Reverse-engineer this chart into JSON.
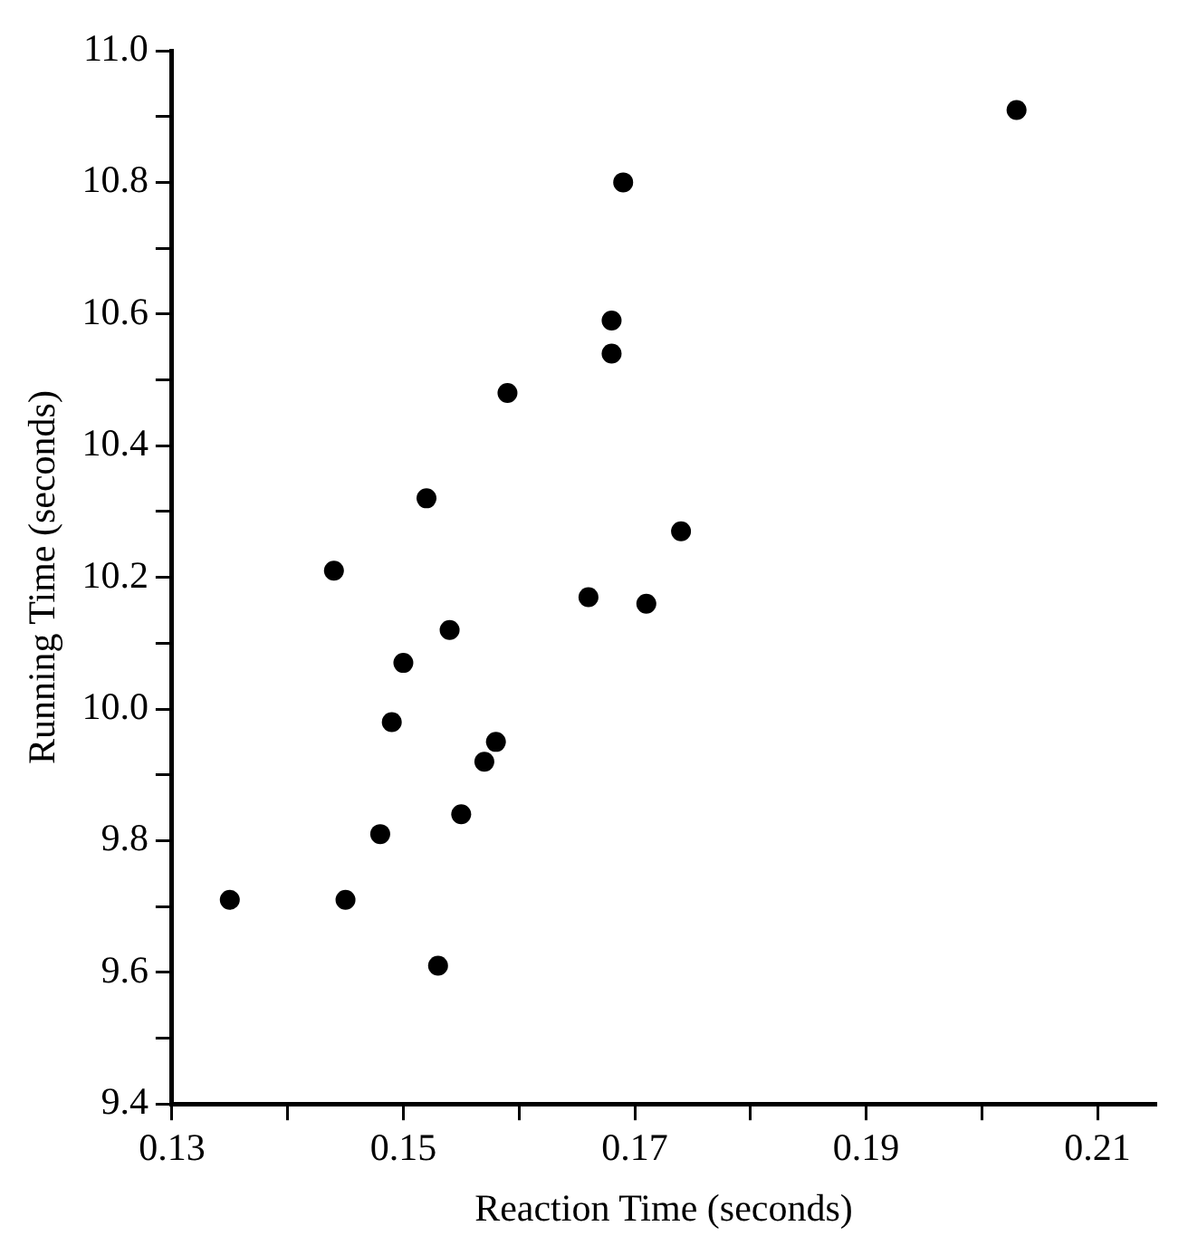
{
  "chart_data": {
    "type": "scatter",
    "xlabel": "Reaction Time (seconds)",
    "ylabel": "Running Time (seconds)",
    "series": [
      {
        "color": "#000000",
        "x": [
          0.203,
          0.169,
          0.168,
          0.168,
          0.159,
          0.152,
          0.144,
          0.174,
          0.166,
          0.171,
          0.154,
          0.15,
          0.149,
          0.158,
          0.157,
          0.155,
          0.148,
          0.135,
          0.145,
          0.153
        ],
        "values": [
          10.91,
          10.8,
          10.59,
          10.54,
          10.48,
          10.32,
          10.21,
          10.27,
          10.17,
          10.16,
          10.12,
          10.07,
          9.98,
          9.95,
          9.92,
          9.84,
          9.81,
          9.71,
          9.71,
          9.61
        ]
      }
    ],
    "xlim": [
      0.13,
      0.215
    ],
    "ylim": [
      9.4,
      11.0
    ],
    "xticks": [
      0.13,
      {
        "value": 0.14,
        "label": null
      },
      0.15,
      {
        "value": 0.16,
        "label": null
      },
      0.17,
      {
        "value": 0.18,
        "label": null
      },
      0.19,
      {
        "value": 0.2,
        "label": null
      },
      0.21
    ],
    "yticks": [
      9.4,
      {
        "value": 9.5,
        "label": null
      },
      9.6,
      {
        "value": 9.7,
        "label": null
      },
      9.8,
      {
        "value": 9.9,
        "label": null
      },
      "10.0",
      {
        "value": 10.1,
        "label": null
      },
      10.2,
      {
        "value": 10.3,
        "label": null
      },
      10.4,
      {
        "value": 10.5,
        "label": null
      },
      10.6,
      {
        "value": 10.7,
        "label": null
      },
      10.8,
      {
        "value": 10.9,
        "label": null
      },
      "11.0"
    ],
    "grid": false,
    "legend": false,
    "marker": "circle"
  }
}
